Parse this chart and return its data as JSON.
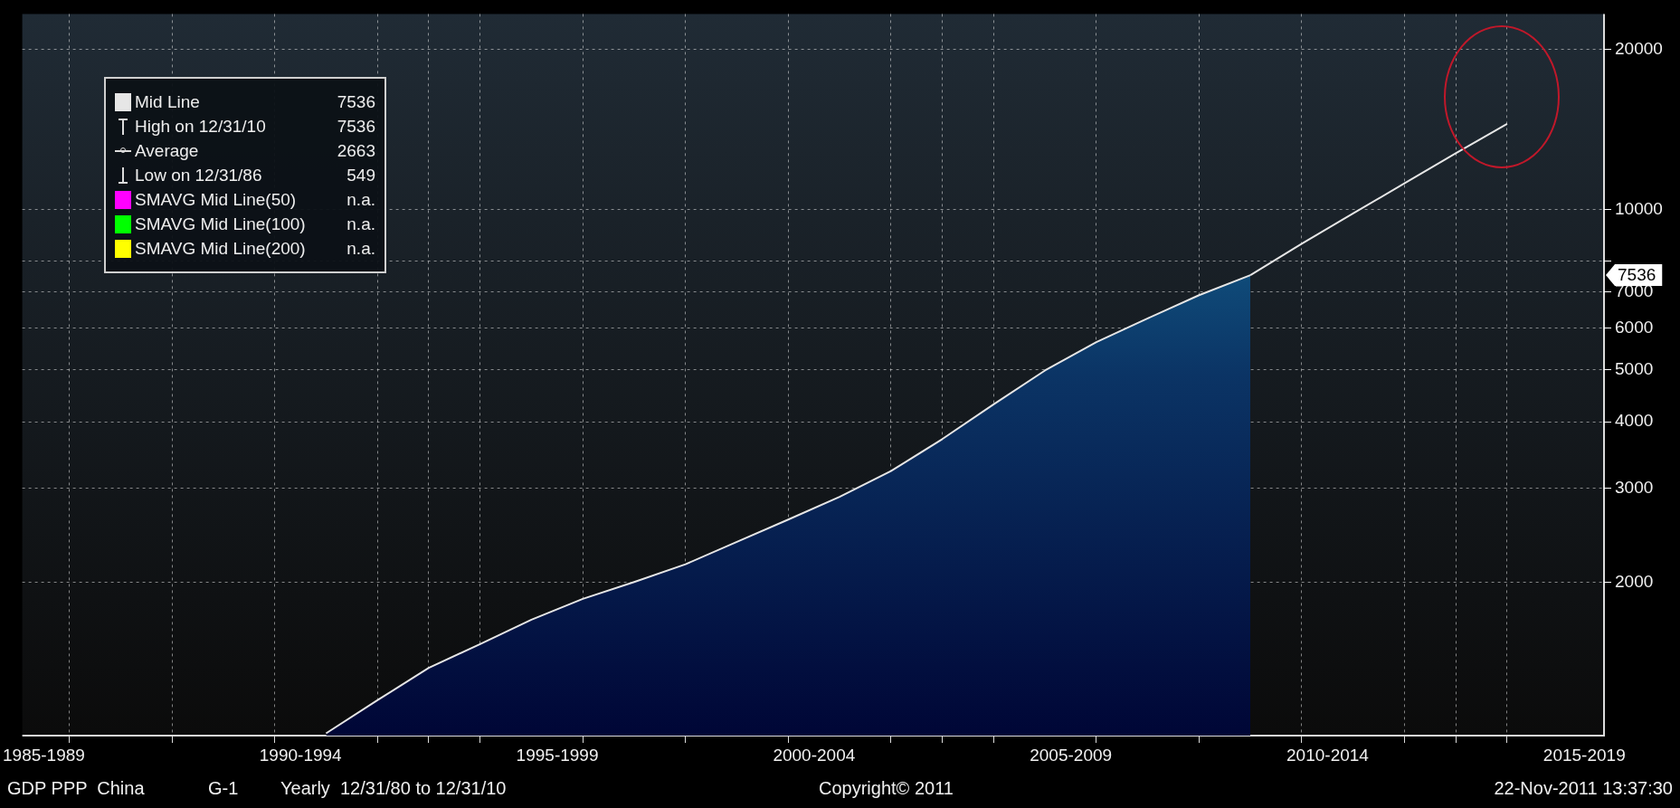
{
  "chart_data": {
    "type": "area",
    "legend": "top left",
    "log": true,
    "grid": true,
    "xlim": [
      "1987-02-01",
      "2017-11-20"
    ],
    "xticks": [
      {
        "value": "1987-07-02",
        "label": "1985-1989"
      },
      {
        "value": "1992-07-02",
        "label": "1990-1994"
      },
      {
        "value": "1997-07-02",
        "label": "1995-1999"
      },
      {
        "value": "2002-07-02",
        "label": "2000-2004"
      },
      {
        "value": "2007-07-02",
        "label": "2005-2009"
      },
      {
        "value": "2012-07-02",
        "label": "2010-2014"
      },
      {
        "value": "2017-07-02",
        "label": "2015-2019"
      },
      {
        "value": "1988-01-01",
        "label": null
      },
      {
        "value": "1990-01-01",
        "label": null
      },
      {
        "value": "1992-01-01",
        "label": null
      },
      {
        "value": "1994-01-01",
        "label": null
      },
      {
        "value": "1995-01-01",
        "label": null
      },
      {
        "value": "1996-01-01",
        "label": null
      },
      {
        "value": "1998-01-01",
        "label": null
      },
      {
        "value": "2000-01-01",
        "label": null
      },
      {
        "value": "2002-01-01",
        "label": null
      },
      {
        "value": "2004-01-01",
        "label": null
      },
      {
        "value": "2005-01-01",
        "label": null
      },
      {
        "value": "2006-01-01",
        "label": null
      },
      {
        "value": "2008-01-01",
        "label": null
      },
      {
        "value": "2010-01-01",
        "label": null
      },
      {
        "value": "2012-01-01",
        "label": null
      },
      {
        "value": "2014-01-01",
        "label": null
      },
      {
        "value": "2015-01-01",
        "label": null
      },
      {
        "value": "2016-01-01",
        "label": null
      }
    ],
    "ylim": [
      1030,
      23300
    ],
    "yticks": [
      2000,
      3000,
      4000,
      5000,
      6000,
      7000,
      {
        "value": 8000,
        "label": null
      },
      10000,
      20000
    ],
    "series": [
      {
        "name": "Mid Line",
        "color": "#e6e6e6",
        "x": [
          "1992-12-31",
          "1993-12-31",
          "1994-12-31",
          "1995-12-31",
          "1996-12-31",
          "1997-12-31",
          "1998-12-31",
          "1999-12-31",
          "2000-12-31",
          "2001-12-31",
          "2002-12-31",
          "2003-12-31",
          "2004-12-31",
          "2005-12-31",
          "2006-12-31",
          "2007-12-31",
          "2008-12-31",
          "2009-12-31",
          "2010-12-31"
        ],
        "values": [
          1040,
          1200,
          1380,
          1530,
          1700,
          1860,
          2000,
          2160,
          2380,
          2620,
          2890,
          3230,
          3710,
          4310,
          4990,
          5640,
          6250,
          6910,
          7536
        ]
      },
      {
        "type": "line",
        "color": "#e6e6e6",
        "x": [
          "2010-12-31",
          "2011-12-31",
          "2012-12-31",
          "2013-12-31",
          "2014-12-31",
          "2015-12-31"
        ],
        "values": [
          7536,
          8630,
          9840,
          11200,
          12760,
          14490
        ]
      },
      {
        "name": "SMAVG Mid Line(50)",
        "type": "line",
        "color": "#ff00ff"
      },
      {
        "name": "SMAVG Mid Line(100)",
        "type": "line",
        "color": "#00ff00"
      },
      {
        "name": "SMAVG Mid Line(200)",
        "type": "line",
        "color": "#ffff00"
      }
    ],
    "annotations": [
      "7536",
      "High on 12/31/10",
      "7536",
      "Average",
      "2663",
      "Low on 12/31/86",
      "549",
      "n.a.",
      "n.a.",
      "n.a.",
      "GDP PPP  China",
      "G-1",
      "Yearly  12/31/80 to 12/31/10",
      "Copyright© 2011",
      "22-Nov-2011 13:37:30",
      "7536"
    ]
  }
}
